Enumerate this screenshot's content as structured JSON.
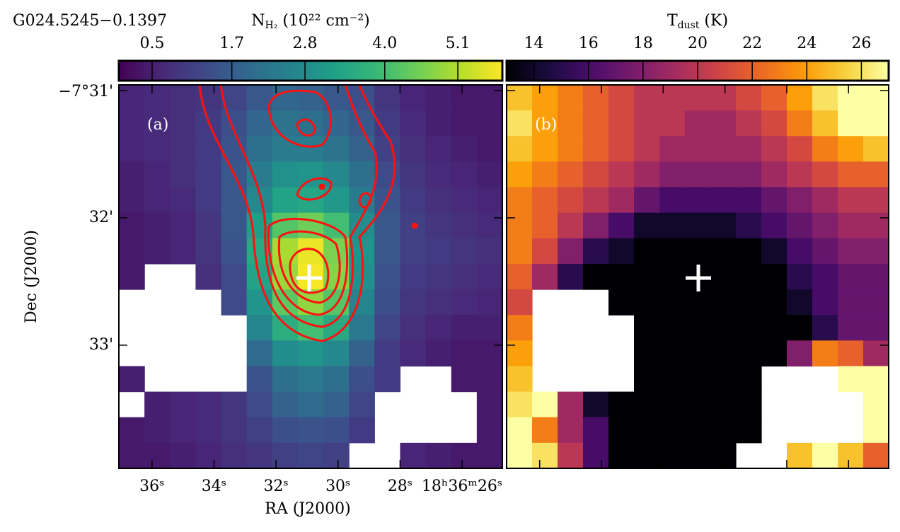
{
  "chart_data": [
    {
      "type": "heatmap",
      "title": "G024.5245−0.1397",
      "panel_label": "(a)",
      "xlabel": "RA (J2000)",
      "ylabel": "Dec (J2000)",
      "colorbar_label": {
        "base": "N",
        "sub": "H₂",
        "rest": " (10²² cm⁻²)"
      },
      "cmap": "viridis",
      "zlim": [
        0,
        5.77
      ],
      "zticks": [
        0.5,
        1.7,
        2.8,
        {
          "value": 4,
          "label": "4.0"
        },
        5.1
      ],
      "xlim": [
        37.07,
        24.7
      ],
      "xticks": [
        {
          "value": 36,
          "label": "36ˢ"
        },
        {
          "value": 34,
          "label": "34ˢ"
        },
        {
          "value": 32,
          "label": "32ˢ"
        },
        {
          "value": 30,
          "label": "30ˢ"
        },
        {
          "value": 28,
          "label": "28ˢ"
        },
        {
          "value": 26,
          "label": "18ʰ36ᵐ26ˢ"
        }
      ],
      "ylim": [
        30.956,
        33.967
      ],
      "yticks": [
        {
          "value": 31,
          "label": "−7°31'"
        },
        {
          "value": 32,
          "label": "32'"
        },
        {
          "value": 33,
          "label": "33'"
        }
      ],
      "z": [
        [
          0.6,
          0.7,
          0.8,
          0.9,
          1.2,
          1.6,
          1.9,
          1.8,
          1.6,
          1.4,
          0.9,
          0.6,
          0.5,
          0.4,
          0.4
        ],
        [
          0.6,
          0.7,
          0.8,
          1.0,
          1.4,
          1.9,
          2.2,
          2.1,
          1.9,
          1.6,
          1.0,
          0.7,
          0.5,
          0.4,
          0.4
        ],
        [
          0.6,
          0.7,
          0.8,
          1.0,
          1.5,
          2.1,
          2.4,
          2.4,
          2.2,
          1.8,
          1.1,
          0.8,
          0.6,
          0.5,
          0.4
        ],
        [
          0.5,
          0.6,
          0.8,
          1.0,
          1.6,
          2.4,
          2.9,
          3.0,
          2.7,
          2.1,
          1.3,
          0.9,
          0.7,
          0.6,
          0.5
        ],
        [
          0.5,
          0.6,
          0.7,
          1.0,
          1.6,
          2.7,
          3.3,
          3.4,
          3.1,
          2.4,
          1.5,
          1.0,
          0.8,
          0.7,
          0.6
        ],
        [
          0.4,
          0.5,
          0.6,
          0.9,
          1.6,
          3.2,
          4.2,
          4.5,
          4.0,
          2.8,
          1.6,
          1.1,
          0.9,
          0.8,
          0.7
        ],
        [
          0.4,
          0.5,
          0.6,
          0.9,
          1.5,
          3.5,
          5.0,
          5.6,
          4.6,
          3.0,
          1.6,
          1.1,
          1.0,
          0.9,
          0.8
        ],
        [
          0.4,
          null,
          null,
          0.8,
          1.3,
          3.3,
          4.9,
          5.7,
          4.7,
          2.9,
          1.5,
          1.0,
          0.9,
          0.8,
          0.7
        ],
        [
          null,
          null,
          null,
          null,
          1.3,
          3.0,
          4.3,
          4.8,
          4.2,
          2.6,
          1.4,
          0.9,
          0.8,
          0.7,
          0.6
        ],
        [
          null,
          null,
          null,
          null,
          null,
          2.6,
          3.6,
          4.0,
          3.5,
          2.3,
          1.2,
          0.8,
          0.6,
          0.5,
          0.5
        ],
        [
          null,
          null,
          null,
          null,
          null,
          2.0,
          2.8,
          3.0,
          2.7,
          1.8,
          1.0,
          0.7,
          0.5,
          0.4,
          0.4
        ],
        [
          0.5,
          null,
          null,
          null,
          null,
          1.5,
          2.1,
          2.3,
          2.1,
          1.4,
          1.0,
          null,
          null,
          0.4,
          0.4
        ],
        [
          null,
          0.5,
          0.6,
          0.7,
          0.9,
          1.3,
          1.8,
          2.0,
          1.8,
          1.2,
          null,
          null,
          null,
          null,
          0.4
        ],
        [
          0.4,
          0.5,
          0.6,
          0.7,
          0.9,
          1.1,
          1.4,
          1.5,
          1.4,
          1.0,
          null,
          null,
          null,
          null,
          0.4
        ],
        [
          0.4,
          0.4,
          0.5,
          0.6,
          0.8,
          0.9,
          1.1,
          1.2,
          1.1,
          null,
          null,
          0.6,
          0.5,
          0.4,
          0.4
        ]
      ]
    },
    {
      "type": "heatmap",
      "panel_label": "(b)",
      "colorbar_label": {
        "base": "T",
        "sub": "dust",
        "rest": " (K)"
      },
      "cmap": "inferno",
      "zlim": [
        13,
        27
      ],
      "zticks": [
        14,
        16,
        18,
        20,
        22,
        24,
        26
      ],
      "z": [
        [
          25,
          24,
          23,
          22,
          21,
          20,
          20,
          20,
          20,
          21,
          22,
          24,
          26,
          27,
          27
        ],
        [
          26,
          24,
          23,
          22,
          21,
          20,
          20,
          19,
          19,
          20,
          21,
          23,
          25,
          27,
          27
        ],
        [
          25,
          24,
          23,
          22,
          21,
          20,
          19,
          19,
          19,
          19,
          20,
          21,
          23,
          24,
          25
        ],
        [
          24,
          23,
          22,
          21,
          20,
          19,
          18,
          18,
          18,
          18,
          19,
          20,
          21,
          22,
          22
        ],
        [
          23,
          22,
          21,
          20,
          19,
          17,
          16,
          16,
          16,
          16,
          17,
          18,
          19,
          20,
          20
        ],
        [
          23,
          22,
          20,
          18,
          16,
          14,
          14,
          14,
          14,
          15,
          16,
          17,
          18,
          19,
          19
        ],
        [
          23,
          21,
          18,
          15,
          14,
          13,
          13,
          13,
          13,
          13,
          14,
          16,
          17,
          18,
          18
        ],
        [
          22,
          19,
          15,
          13,
          13,
          13,
          13,
          13,
          13,
          13,
          13,
          15,
          16,
          17,
          17
        ],
        [
          21,
          null,
          null,
          null,
          13,
          13,
          13,
          13,
          13,
          13,
          13,
          14,
          16,
          17,
          17
        ],
        [
          23,
          null,
          null,
          null,
          null,
          13,
          13,
          13,
          13,
          13,
          13,
          13,
          15,
          17,
          17
        ],
        [
          24,
          null,
          null,
          null,
          null,
          13,
          13,
          13,
          13,
          13,
          13,
          18,
          23,
          22,
          19
        ],
        [
          25,
          null,
          null,
          null,
          null,
          13,
          13,
          13,
          13,
          13,
          null,
          null,
          null,
          27,
          27
        ],
        [
          26,
          27,
          19,
          14,
          13,
          13,
          13,
          13,
          13,
          13,
          null,
          null,
          null,
          null,
          27
        ],
        [
          27,
          23,
          19,
          16,
          13,
          13,
          13,
          13,
          13,
          13,
          null,
          null,
          null,
          null,
          27
        ],
        [
          27,
          26,
          20,
          16,
          13,
          13,
          13,
          13,
          13,
          null,
          null,
          25,
          27,
          25,
          22
        ]
      ]
    }
  ]
}
